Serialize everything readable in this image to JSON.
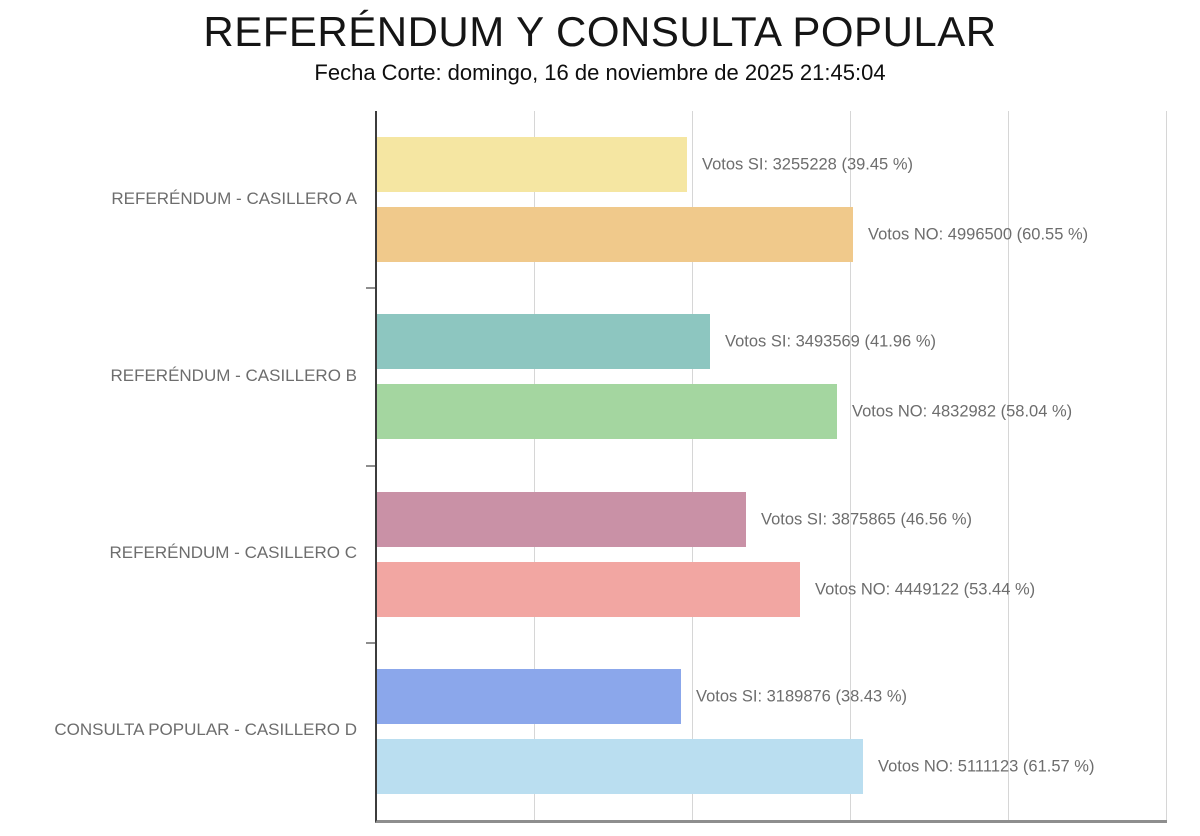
{
  "header": {
    "title": "REFERÉNDUM Y CONSULTA POPULAR",
    "subtitle": "Fecha Corte: domingo, 16 de noviembre de 2025 21:45:04"
  },
  "chart_data": {
    "type": "bar",
    "orientation": "horizontal",
    "title": "REFERÉNDUM Y CONSULTA POPULAR",
    "subtitle": "Fecha Corte: domingo, 16 de noviembre de 2025 21:45:04",
    "xlabel": "",
    "ylabel": "",
    "axis_max": 8300000,
    "gridline_count": 5,
    "grid": true,
    "legend_position": "none",
    "categories": [
      "REFERÉNDUM - CASILLERO A",
      "REFERÉNDUM - CASILLERO B",
      "REFERÉNDUM - CASILLERO C",
      "CONSULTA POPULAR - CASILLERO D"
    ],
    "series": [
      {
        "name": "Votos SI",
        "values": [
          3255228,
          3493569,
          3875865,
          3189876
        ],
        "percents": [
          39.45,
          41.96,
          46.56,
          38.43
        ],
        "labels": [
          "Votos SI: 3255228 (39.45 %)",
          "Votos SI: 3493569 (41.96 %)",
          "Votos SI: 3875865 (46.56 %)",
          "Votos SI: 3189876 (38.43 %)"
        ],
        "colors": [
          "#F5E6A2",
          "#8DC6C0",
          "#C991A6",
          "#8BA7EB"
        ]
      },
      {
        "name": "Votos NO",
        "values": [
          4996500,
          4832982,
          4449122,
          5111123
        ],
        "percents": [
          60.55,
          58.04,
          53.44,
          61.57
        ],
        "labels": [
          "Votos NO: 4996500 (60.55 %)",
          "Votos NO: 4832982 (58.04 %)",
          "Votos NO: 4449122 (53.44 %)",
          "Votos NO: 5111123 (61.57 %)"
        ],
        "colors": [
          "#F0C98B",
          "#A4D6A0",
          "#F2A6A2",
          "#BADEF0"
        ]
      }
    ],
    "colors": {
      "label_text": "#6d6d6d",
      "gridline": "#d6d6d6",
      "y_axis": "#3c3c3c",
      "x_axis": "#8e8e8e",
      "title_text": "#151515"
    }
  }
}
